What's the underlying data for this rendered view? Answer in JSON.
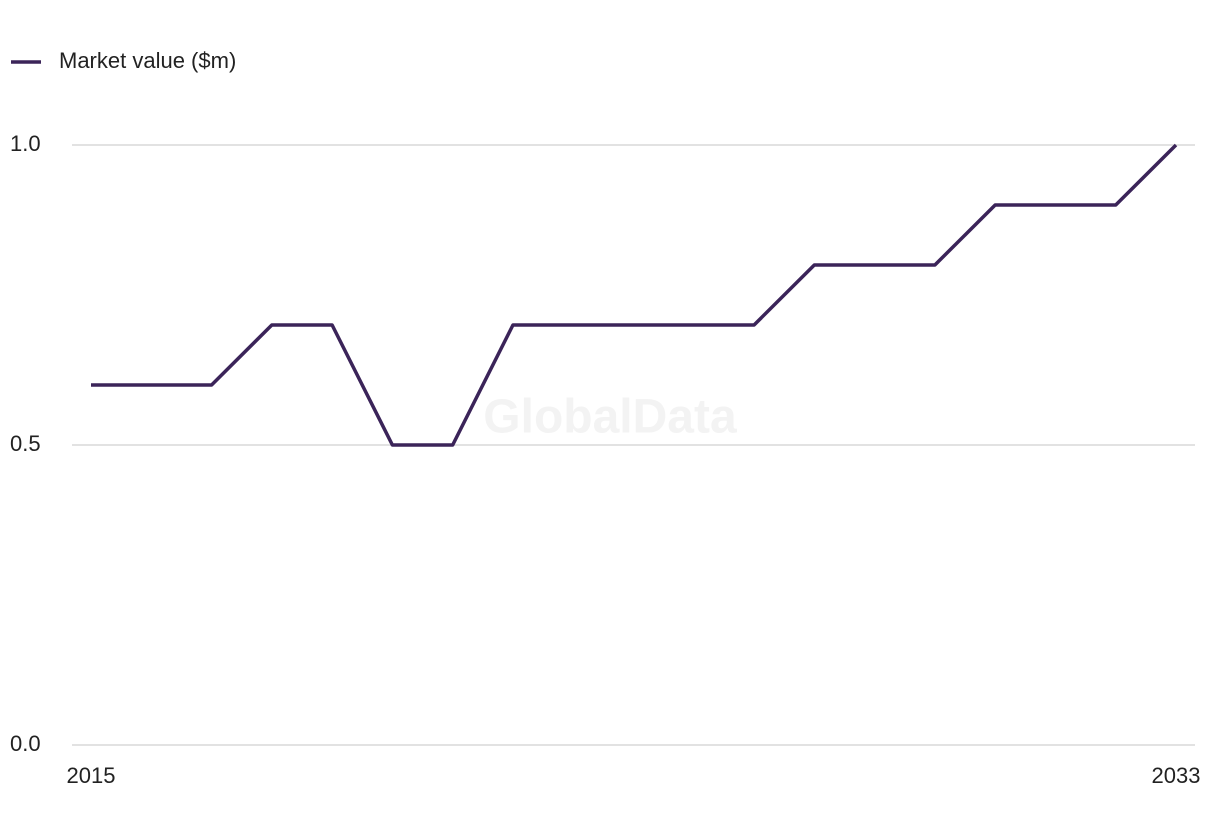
{
  "chart_data": {
    "type": "line",
    "legend": "top-left",
    "watermark": "GlobalData",
    "x": [
      2015,
      2016,
      2017,
      2018,
      2019,
      2020,
      2021,
      2022,
      2023,
      2024,
      2025,
      2026,
      2027,
      2028,
      2029,
      2030,
      2031,
      2032,
      2033
    ],
    "xlim": [
      2015,
      2033
    ],
    "xticks": [
      2015,
      2033
    ],
    "ylim": [
      0,
      1
    ],
    "yticks": [
      {
        "value": 0,
        "label": "0.0"
      },
      {
        "value": 0.5,
        "label": "0.5"
      },
      {
        "value": 1,
        "label": "1.0"
      }
    ],
    "grid": true,
    "series": [
      {
        "name": "Market value ($m)",
        "color": "#3b2459",
        "values": [
          0.6,
          0.6,
          0.6,
          0.7,
          0.7,
          0.5,
          0.5,
          0.7,
          0.7,
          0.7,
          0.7,
          0.7,
          0.8,
          0.8,
          0.8,
          0.9,
          0.9,
          0.9,
          1.0
        ]
      }
    ]
  }
}
